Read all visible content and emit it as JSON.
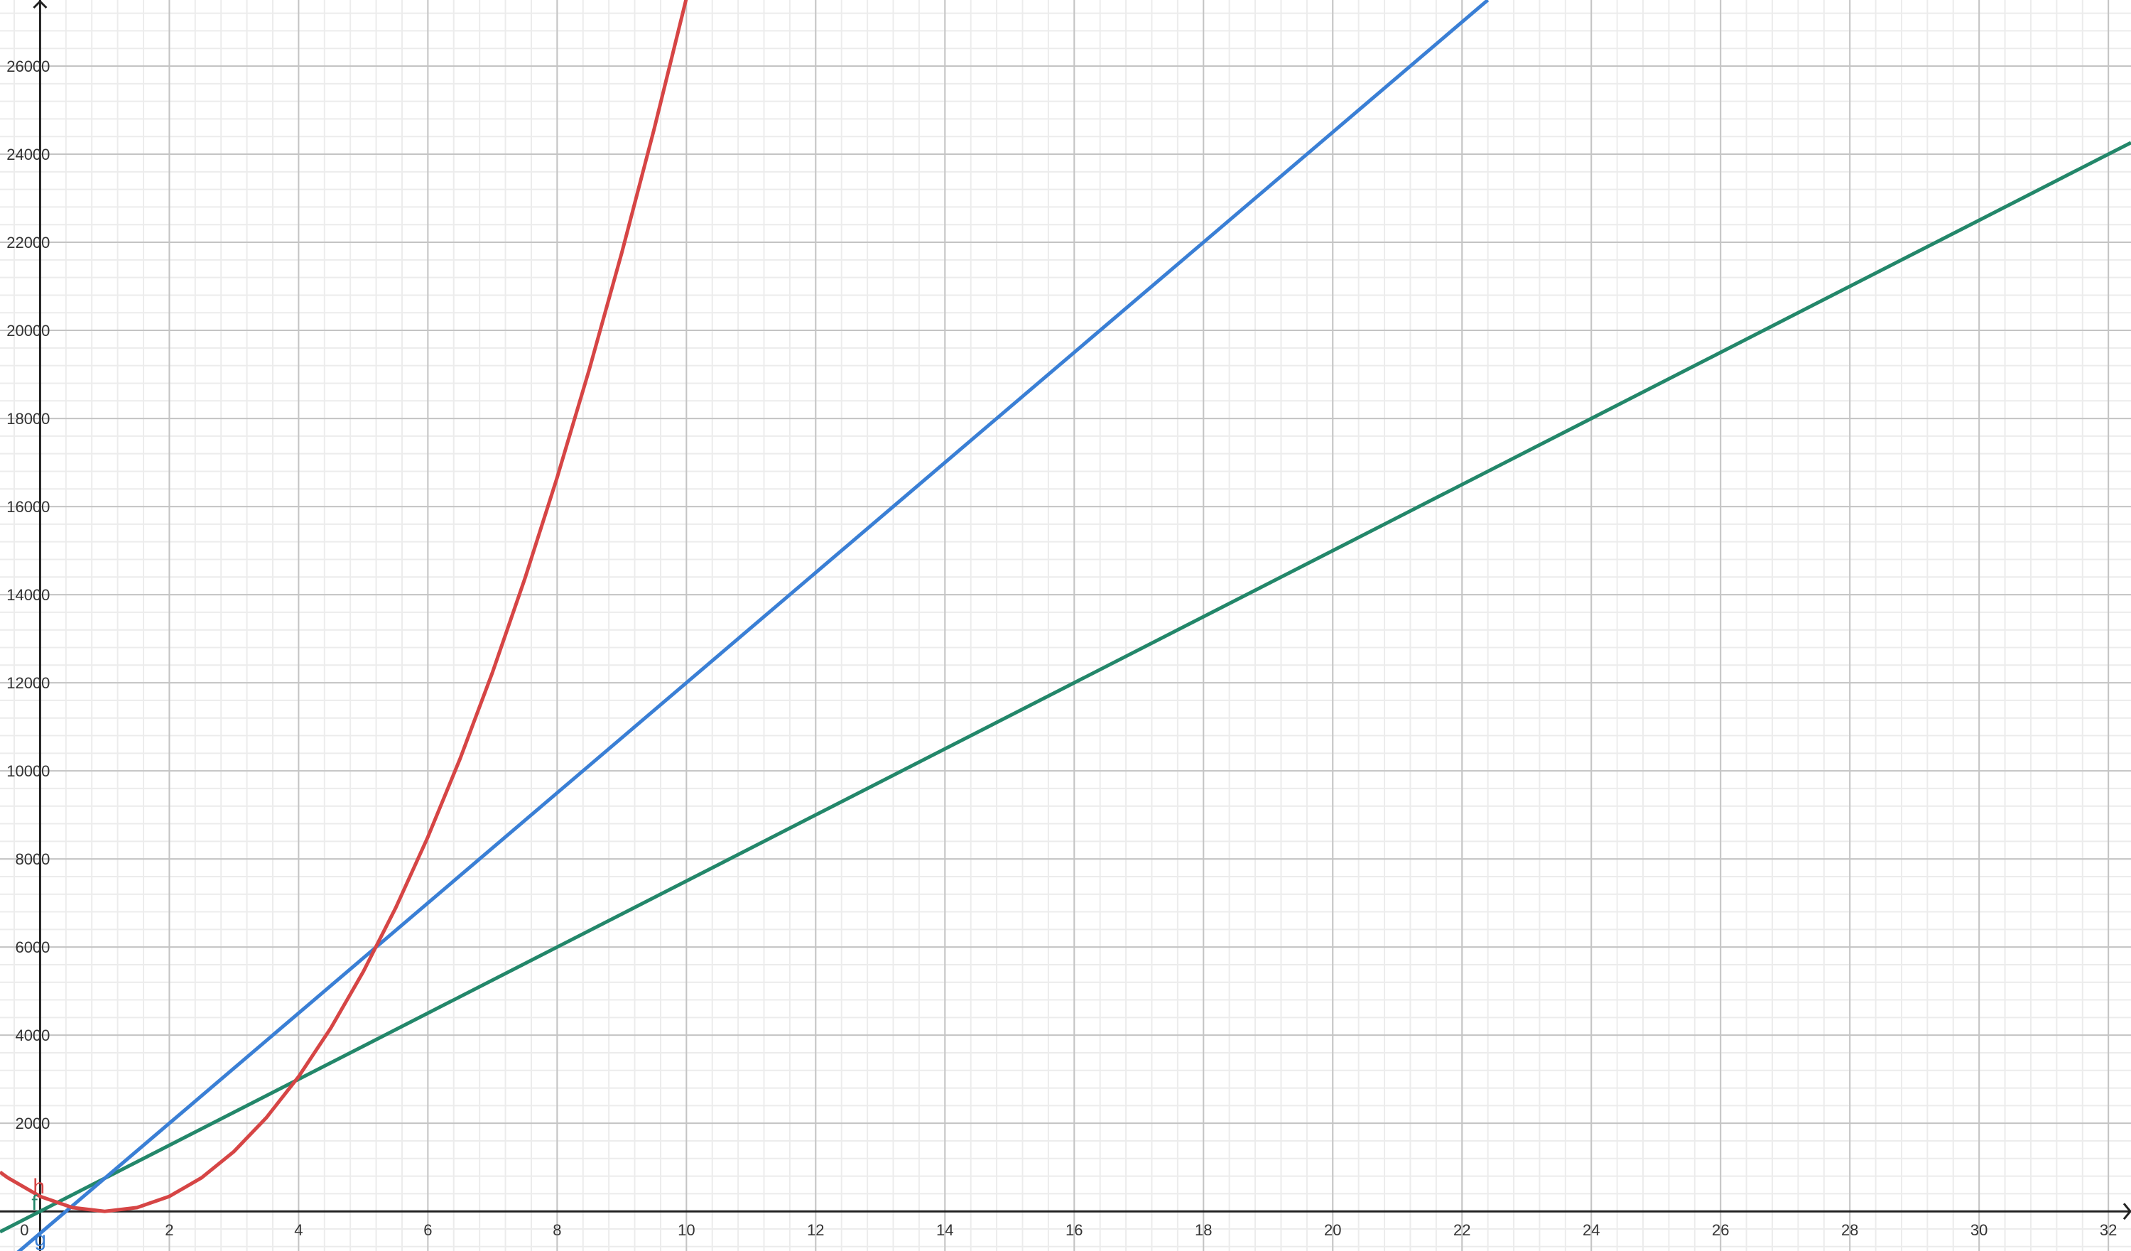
{
  "chart_data": {
    "type": "line",
    "title": "",
    "xlabel": "",
    "ylabel": "",
    "xlim": [
      -0.62,
      32.35
    ],
    "ylim": [
      -900,
      27500
    ],
    "grid": true,
    "x_major_step": 2,
    "x_minor_step": 0.4,
    "y_major_step": 2000,
    "y_minor_step": 400,
    "x_tick_labels": [
      "0",
      "2",
      "4",
      "6",
      "8",
      "10",
      "12",
      "14",
      "16",
      "18",
      "20",
      "22",
      "24",
      "26",
      "28",
      "30",
      "32"
    ],
    "y_tick_labels": [
      "2000",
      "4000",
      "6000",
      "8000",
      "10000",
      "12000",
      "14000",
      "16000",
      "18000",
      "20000",
      "22000",
      "24000",
      "26000"
    ],
    "series": [
      {
        "name": "f",
        "color": "#23876a",
        "x": [
          -0.62,
          0,
          8,
          16,
          24,
          32,
          32.35
        ],
        "y": [
          -465,
          0,
          6000,
          12000,
          18000,
          24000,
          24262
        ]
      },
      {
        "name": "g",
        "color": "#3a7fd5",
        "x": [
          -0.62,
          0,
          2,
          10,
          20,
          22.4
        ],
        "y": [
          -1275,
          -500,
          2000,
          12000,
          24500,
          27500
        ]
      },
      {
        "name": "h",
        "color": "#d64545",
        "x": [
          -0.62,
          -0.5,
          0,
          0.5,
          1,
          1.5,
          2,
          2.5,
          3,
          3.5,
          4,
          4.5,
          5,
          5.5,
          6,
          6.5,
          7,
          7.5,
          8,
          8.5,
          9,
          9.5,
          10
        ],
        "y": [
          892,
          765,
          340,
          85,
          0,
          85,
          340,
          765,
          1360,
          2125,
          3060,
          4165,
          5440,
          6885,
          8500,
          10285,
          12240,
          14365,
          16660,
          19125,
          21760,
          24565,
          27540
        ]
      }
    ]
  }
}
